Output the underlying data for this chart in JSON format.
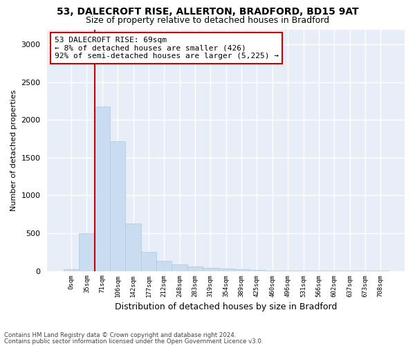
{
  "title_line1": "53, DALECROFT RISE, ALLERTON, BRADFORD, BD15 9AT",
  "title_line2": "Size of property relative to detached houses in Bradford",
  "xlabel": "Distribution of detached houses by size in Bradford",
  "ylabel": "Number of detached properties",
  "bar_color": "#c9dcf0",
  "bar_edge_color": "#aec8e0",
  "background_color": "#e8eef8",
  "annotation_box_color": "#cc0000",
  "vline_color": "#cc0000",
  "vline_x": 1.5,
  "annotation_text": "53 DALECROFT RISE: 69sqm\n← 8% of detached houses are smaller (426)\n92% of semi-detached houses are larger (5,225) →",
  "bin_labels": [
    "0sqm",
    "35sqm",
    "71sqm",
    "106sqm",
    "142sqm",
    "177sqm",
    "212sqm",
    "248sqm",
    "283sqm",
    "319sqm",
    "354sqm",
    "389sqm",
    "425sqm",
    "460sqm",
    "496sqm",
    "531sqm",
    "566sqm",
    "602sqm",
    "637sqm",
    "673sqm",
    "708sqm"
  ],
  "bar_values": [
    25,
    500,
    2180,
    1720,
    630,
    255,
    130,
    90,
    60,
    45,
    30,
    20,
    12,
    8,
    5,
    3,
    2,
    2,
    1,
    1,
    1
  ],
  "ylim": [
    0,
    3200
  ],
  "yticks": [
    0,
    500,
    1000,
    1500,
    2000,
    2500,
    3000
  ],
  "footer_line1": "Contains HM Land Registry data © Crown copyright and database right 2024.",
  "footer_line2": "Contains public sector information licensed under the Open Government Licence v3.0."
}
